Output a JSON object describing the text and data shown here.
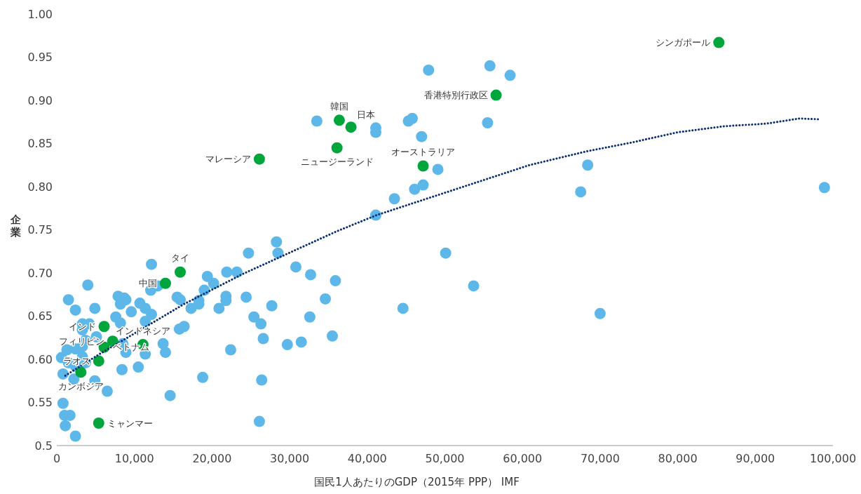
{
  "chart_data": {
    "type": "scatter",
    "xlabel": "国民1人あたりのGDP（2015年 PPP） IMF",
    "ylabel": "企業",
    "xlim": [
      0,
      100000
    ],
    "xticks": [
      {
        "value": 0,
        "label": "0"
      },
      {
        "value": 10000,
        "label": "10,000"
      },
      {
        "value": 20000,
        "label": "20,000"
      },
      {
        "value": 30000,
        "label": "30,000"
      },
      {
        "value": 40000,
        "label": "40,000"
      },
      {
        "value": 50000,
        "label": "50,000"
      },
      {
        "value": 60000,
        "label": "60,000"
      },
      {
        "value": 70000,
        "label": "70,000"
      },
      {
        "value": 80000,
        "label": "80,000"
      },
      {
        "value": 90000,
        "label": "90,000"
      },
      {
        "value": 100000,
        "label": "100,000"
      }
    ],
    "ylim": [
      0.5,
      1.0
    ],
    "yticks": [
      0.5,
      0.55,
      {
        "value": 0.6,
        "label": "0.60"
      },
      0.65,
      {
        "value": 0.7,
        "label": "0.70"
      },
      0.75,
      {
        "value": 0.8,
        "label": "0.80"
      },
      0.85,
      {
        "value": 0.9,
        "label": "0.90"
      },
      0.95,
      {
        "value": 1.0,
        "label": "1.00"
      }
    ],
    "grid": false,
    "marker": "circle",
    "series": [
      {
        "type": "scatter",
        "color": "#5db7e8",
        "x": [
          47900,
          55800,
          58400,
          33500,
          41100,
          41100,
          45800,
          45300,
          47000,
          55500,
          49100,
          68400,
          47200,
          46100,
          43500,
          41100,
          67500,
          98900,
          50100,
          53700,
          44600,
          70000,
          28300,
          28500,
          24700,
          21900,
          23200,
          19400,
          20200,
          19000,
          30800,
          32700,
          35900,
          34600,
          24400,
          21800,
          21800,
          20900,
          27700,
          18300,
          18300,
          17300,
          16400,
          15800,
          25400,
          26300,
          26600,
          32600,
          29700,
          31500,
          35500,
          22400,
          18800,
          26400,
          26100,
          14600,
          12200,
          12100,
          13000,
          15500,
          15900,
          10700,
          11400,
          12200,
          9600,
          11400,
          8900,
          11400,
          14000,
          13700,
          10500,
          8900,
          4000,
          1500,
          2400,
          4900,
          7900,
          8700,
          8200,
          7600,
          8200,
          3300,
          4200,
          3300,
          5100,
          3700,
          3300,
          8500,
          1300,
          2400,
          600,
          3300,
          1500,
          3700,
          800,
          2200,
          2400,
          4900,
          6500,
          8400,
          800,
          1000,
          1700,
          1100,
          2400
        ],
        "values": [
          0.935,
          0.94,
          0.929,
          0.876,
          0.868,
          0.863,
          0.879,
          0.876,
          0.858,
          0.874,
          0.82,
          0.825,
          0.802,
          0.797,
          0.786,
          0.767,
          0.794,
          0.799,
          0.723,
          0.685,
          0.659,
          0.653,
          0.736,
          0.723,
          0.723,
          0.701,
          0.701,
          0.696,
          0.688,
          0.68,
          0.707,
          0.698,
          0.691,
          0.67,
          0.672,
          0.673,
          0.668,
          0.659,
          0.662,
          0.668,
          0.664,
          0.659,
          0.638,
          0.635,
          0.649,
          0.641,
          0.624,
          0.649,
          0.617,
          0.62,
          0.627,
          0.611,
          0.579,
          0.576,
          0.528,
          0.558,
          0.71,
          0.68,
          0.685,
          0.672,
          0.669,
          0.665,
          0.659,
          0.652,
          0.655,
          0.644,
          0.669,
          0.606,
          0.608,
          0.618,
          0.591,
          0.608,
          0.686,
          0.669,
          0.657,
          0.659,
          0.673,
          0.671,
          0.664,
          0.649,
          0.642,
          0.641,
          0.641,
          0.634,
          0.626,
          0.622,
          0.615,
          0.618,
          0.611,
          0.612,
          0.602,
          0.603,
          0.596,
          0.596,
          0.583,
          0.577,
          0.592,
          0.575,
          0.563,
          0.588,
          0.549,
          0.535,
          0.535,
          0.523,
          0.511
        ]
      },
      {
        "type": "scatter",
        "color": "#00a63c",
        "x": [
          85300,
          56600,
          36400,
          37900,
          36100,
          26100,
          47200,
          15900,
          14000,
          6100,
          7200,
          6100,
          11100,
          5400,
          3100,
          5400
        ],
        "values": [
          0.967,
          0.906,
          0.877,
          0.869,
          0.845,
          0.832,
          0.824,
          0.701,
          0.688,
          0.638,
          0.621,
          0.614,
          0.617,
          0.598,
          0.585,
          0.526
        ]
      },
      {
        "type": "line",
        "color": "#0b2d72",
        "line_style": "dotted",
        "marker": "none",
        "x": [
          1100,
          5500,
          8900,
          16400,
          24000,
          36000,
          41200,
          60900,
          68300,
          74000,
          80000,
          86000,
          91400,
          95700,
          98200
        ],
        "values": [
          0.581,
          0.606,
          0.624,
          0.664,
          0.699,
          0.748,
          0.767,
          0.825,
          0.841,
          0.851,
          0.863,
          0.87,
          0.873,
          0.879,
          0.878
        ]
      }
    ],
    "annotations": [
      {
        "text": "シンガポール",
        "x": 85300,
        "y": 0.967
      },
      {
        "text": "香港特別行政区",
        "x": 56600,
        "y": 0.906
      },
      {
        "text": "韓国",
        "x": 36400,
        "y": 0.877
      },
      {
        "text": "日本",
        "x": 37900,
        "y": 0.869
      },
      {
        "text": "ニュージーランド",
        "x": 36100,
        "y": 0.845
      },
      {
        "text": "マレーシア",
        "x": 26100,
        "y": 0.832
      },
      {
        "text": "オーストラリア",
        "x": 47200,
        "y": 0.824
      },
      {
        "text": "タイ",
        "x": 15900,
        "y": 0.701
      },
      {
        "text": "中国",
        "x": 14000,
        "y": 0.688
      },
      {
        "text": "インド",
        "x": 6100,
        "y": 0.638
      },
      {
        "text": "フィリピン",
        "x": 7200,
        "y": 0.621
      },
      {
        "text": "ベトナム",
        "x": 6100,
        "y": 0.614
      },
      {
        "text": "インドネシア",
        "x": 11100,
        "y": 0.617
      },
      {
        "text": "ラオス",
        "x": 5400,
        "y": 0.598
      },
      {
        "text": "カンボジア",
        "x": 3100,
        "y": 0.585
      },
      {
        "text": "ミャンマー",
        "x": 5400,
        "y": 0.526
      }
    ]
  }
}
